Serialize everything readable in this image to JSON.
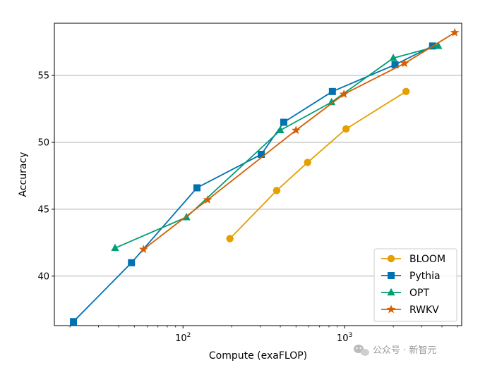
{
  "chart_data": {
    "type": "line",
    "title": "",
    "xlabel": "Compute (exaFLOP)",
    "ylabel": "Accuracy",
    "xscale": "log",
    "xlim": [
      16,
      5300
    ],
    "ylim": [
      36.3,
      58.9
    ],
    "x_ticks": [
      {
        "value": 100,
        "base": "10",
        "exp": "2"
      },
      {
        "value": 1000,
        "base": "10",
        "exp": "3"
      }
    ],
    "y_ticks": [
      40,
      45,
      50,
      55
    ],
    "grid": "horizontal",
    "legend_position": "lower-right",
    "series": [
      {
        "name": "BLOOM",
        "color": "#e69f00",
        "marker": "circle",
        "x": [
          195,
          380,
          590,
          1020,
          2400
        ],
        "y": [
          42.8,
          46.4,
          48.5,
          51.0,
          53.8
        ]
      },
      {
        "name": "Pythia",
        "color": "#0072b2",
        "marker": "square",
        "x": [
          21,
          48,
          122,
          305,
          420,
          840,
          2050,
          3500
        ],
        "y": [
          36.6,
          41.0,
          46.6,
          49.1,
          51.5,
          53.8,
          55.8,
          57.2
        ]
      },
      {
        "name": "OPT",
        "color": "#009e73",
        "marker": "triangle",
        "x": [
          38,
          105,
          400,
          830,
          2000,
          3800
        ],
        "y": [
          42.1,
          44.4,
          50.9,
          53.0,
          56.3,
          57.2
        ]
      },
      {
        "name": "RWKV",
        "color": "#d55e00",
        "marker": "star",
        "x": [
          57,
          142,
          500,
          990,
          2350,
          4800
        ],
        "y": [
          42.0,
          45.7,
          50.9,
          53.6,
          55.9,
          58.2
        ]
      }
    ]
  },
  "watermark": {
    "text": "公众号 · 新智元",
    "icon": "wechat-icon"
  }
}
